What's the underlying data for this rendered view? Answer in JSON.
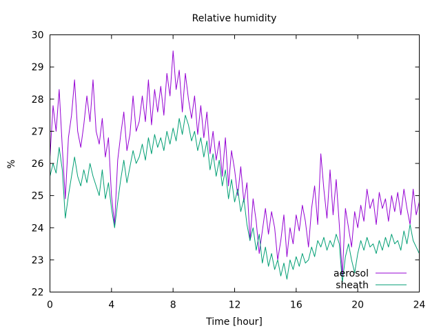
{
  "chart_data": {
    "type": "line",
    "title": "Relative humidity",
    "xlabel": "Time [hour]",
    "ylabel": "%",
    "xlim": [
      0,
      24
    ],
    "ylim": [
      22,
      30
    ],
    "xticks": [
      0,
      4,
      8,
      12,
      16,
      20,
      24
    ],
    "yticks": [
      22,
      23,
      24,
      25,
      26,
      27,
      28,
      29,
      30
    ],
    "grid": false,
    "legend_position": "bottom-right",
    "series": [
      {
        "name": "aerosol",
        "color": "#9400d3",
        "x": [
          0,
          0.2,
          0.4,
          0.6,
          0.8,
          1.0,
          1.2,
          1.4,
          1.6,
          1.8,
          2.0,
          2.2,
          2.4,
          2.6,
          2.8,
          3.0,
          3.2,
          3.4,
          3.6,
          3.8,
          4.0,
          4.2,
          4.4,
          4.6,
          4.8,
          5.0,
          5.2,
          5.4,
          5.6,
          5.8,
          6.0,
          6.2,
          6.4,
          6.6,
          6.8,
          7.0,
          7.2,
          7.4,
          7.6,
          7.8,
          8.0,
          8.2,
          8.4,
          8.6,
          8.8,
          9.0,
          9.2,
          9.4,
          9.6,
          9.8,
          10.0,
          10.2,
          10.4,
          10.6,
          10.8,
          11.0,
          11.2,
          11.4,
          11.6,
          11.8,
          12.0,
          12.2,
          12.4,
          12.6,
          12.8,
          13.0,
          13.2,
          13.4,
          13.6,
          13.8,
          14.0,
          14.2,
          14.4,
          14.6,
          14.8,
          15.0,
          15.2,
          15.4,
          15.6,
          15.8,
          16.0,
          16.2,
          16.4,
          16.6,
          16.8,
          17.0,
          17.2,
          17.4,
          17.6,
          17.8,
          18.0,
          18.2,
          18.4,
          18.6,
          18.8,
          19.0,
          19.2,
          19.4,
          19.6,
          19.8,
          20.0,
          20.2,
          20.4,
          20.6,
          20.8,
          21.0,
          21.2,
          21.4,
          21.6,
          21.8,
          22.0,
          22.2,
          22.4,
          22.6,
          22.8,
          23.0,
          23.2,
          23.4,
          23.6,
          23.8,
          24.0
        ],
        "y": [
          26.2,
          27.8,
          27.0,
          28.3,
          26.5,
          24.9,
          26.8,
          27.5,
          28.6,
          27.0,
          26.5,
          27.2,
          28.1,
          27.3,
          28.6,
          27.0,
          26.6,
          27.4,
          26.2,
          26.8,
          25.0,
          24.1,
          26.1,
          26.9,
          27.6,
          26.4,
          26.9,
          28.1,
          27.0,
          27.3,
          28.1,
          27.3,
          28.6,
          27.2,
          28.3,
          27.6,
          28.4,
          27.5,
          28.8,
          28.1,
          29.5,
          28.3,
          28.9,
          27.6,
          28.8,
          28.0,
          27.4,
          28.1,
          26.9,
          27.8,
          26.8,
          27.6,
          26.3,
          27.0,
          26.1,
          26.7,
          25.6,
          26.8,
          25.3,
          26.4,
          25.8,
          25.0,
          25.9,
          24.8,
          25.4,
          23.6,
          24.9,
          24.2,
          23.2,
          23.9,
          24.6,
          23.8,
          24.5,
          24.0,
          23.0,
          23.6,
          24.4,
          23.1,
          24.0,
          23.5,
          24.4,
          23.9,
          24.7,
          24.2,
          23.4,
          24.6,
          25.3,
          24.1,
          26.3,
          25.2,
          24.3,
          25.8,
          24.4,
          25.5,
          24.1,
          22.5,
          24.6,
          24.0,
          23.4,
          24.5,
          24.0,
          24.7,
          24.2,
          25.2,
          24.6,
          24.9,
          24.1,
          25.1,
          24.6,
          24.9,
          24.2,
          25.0,
          24.5,
          25.1,
          24.4,
          25.2,
          24.6,
          24.1,
          25.2,
          24.4,
          24.8
        ]
      },
      {
        "name": "sheath",
        "color": "#009e73",
        "x": [
          0,
          0.2,
          0.4,
          0.6,
          0.8,
          1.0,
          1.2,
          1.4,
          1.6,
          1.8,
          2.0,
          2.2,
          2.4,
          2.6,
          2.8,
          3.0,
          3.2,
          3.4,
          3.6,
          3.8,
          4.0,
          4.2,
          4.4,
          4.6,
          4.8,
          5.0,
          5.2,
          5.4,
          5.6,
          5.8,
          6.0,
          6.2,
          6.4,
          6.6,
          6.8,
          7.0,
          7.2,
          7.4,
          7.6,
          7.8,
          8.0,
          8.2,
          8.4,
          8.6,
          8.8,
          9.0,
          9.2,
          9.4,
          9.6,
          9.8,
          10.0,
          10.2,
          10.4,
          10.6,
          10.8,
          11.0,
          11.2,
          11.4,
          11.6,
          11.8,
          12.0,
          12.2,
          12.4,
          12.6,
          12.8,
          13.0,
          13.2,
          13.4,
          13.6,
          13.8,
          14.0,
          14.2,
          14.4,
          14.6,
          14.8,
          15.0,
          15.2,
          15.4,
          15.6,
          15.8,
          16.0,
          16.2,
          16.4,
          16.6,
          16.8,
          17.0,
          17.2,
          17.4,
          17.6,
          17.8,
          18.0,
          18.2,
          18.4,
          18.6,
          18.8,
          19.0,
          19.2,
          19.4,
          19.6,
          19.8,
          20.0,
          20.2,
          20.4,
          20.6,
          20.8,
          21.0,
          21.2,
          21.4,
          21.6,
          21.8,
          22.0,
          22.2,
          22.4,
          22.6,
          22.8,
          23.0,
          23.2,
          23.4,
          23.6,
          23.8,
          24.0
        ],
        "y": [
          25.6,
          26.0,
          25.7,
          26.5,
          25.8,
          24.3,
          25.0,
          25.6,
          26.2,
          25.6,
          25.3,
          25.8,
          25.4,
          26.0,
          25.6,
          25.3,
          25.0,
          25.8,
          24.9,
          25.4,
          24.6,
          24.0,
          24.8,
          25.5,
          26.1,
          25.4,
          25.9,
          26.4,
          26.0,
          26.2,
          26.6,
          26.1,
          26.8,
          26.3,
          26.9,
          26.5,
          26.8,
          26.4,
          27.0,
          26.6,
          27.1,
          26.7,
          27.4,
          26.9,
          27.5,
          27.2,
          26.7,
          27.0,
          26.4,
          26.8,
          26.2,
          26.7,
          25.8,
          26.3,
          25.6,
          26.1,
          25.3,
          25.8,
          24.9,
          25.5,
          24.8,
          25.2,
          24.5,
          24.9,
          24.1,
          23.6,
          24.0,
          23.3,
          23.8,
          22.9,
          23.4,
          22.8,
          23.2,
          22.7,
          23.0,
          22.5,
          22.9,
          22.4,
          23.0,
          22.7,
          23.1,
          22.8,
          23.2,
          22.9,
          23.0,
          23.4,
          23.1,
          23.6,
          23.4,
          23.7,
          23.3,
          23.6,
          23.4,
          23.8,
          23.5,
          22.3,
          23.1,
          23.5,
          23.0,
          22.6,
          23.2,
          23.6,
          23.3,
          23.7,
          23.4,
          23.5,
          23.2,
          23.6,
          23.3,
          23.7,
          23.4,
          23.8,
          23.5,
          23.6,
          23.3,
          23.9,
          23.5,
          24.1,
          23.6,
          23.4,
          23.2
        ]
      }
    ]
  }
}
